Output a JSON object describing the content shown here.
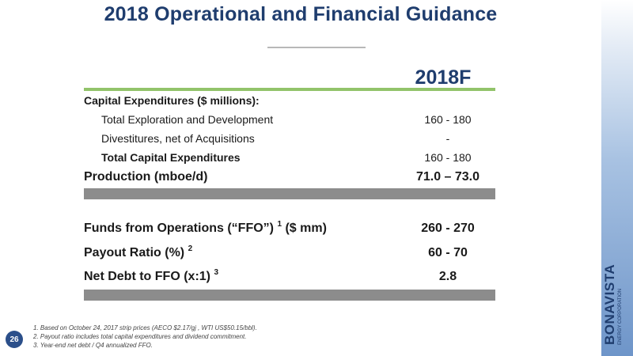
{
  "slide": {
    "title": "2018 Operational and Financial Guidance",
    "column_header": "2018F",
    "page_number": "26"
  },
  "rows": {
    "capex_header": "Capital Expenditures ($ millions):",
    "exploration": {
      "label": "Total Exploration and Development",
      "value": "160 - 180"
    },
    "divestitures": {
      "label": "Divestitures, net of Acquisitions",
      "value": "-"
    },
    "total_capex": {
      "label": "Total Capital Expenditures",
      "value": "160 - 180"
    },
    "production": {
      "label": "Production (mboe/d)",
      "value": "71.0 – 73.0"
    },
    "ffo": {
      "label": "Funds from Operations (“FFO”) ",
      "sup": "1",
      "label2": " ($ mm)",
      "value": "260 - 270"
    },
    "payout": {
      "label": "Payout Ratio (%) ",
      "sup": "2",
      "value": "60 - 70"
    },
    "net_debt": {
      "label": "Net Debt to FFO (x:1) ",
      "sup": "3",
      "value": "2.8"
    }
  },
  "footnotes": [
    "1. Based on October 24, 2017 strip prices (AECO $2.17/gj , WTI US$50.15/bbl).",
    "2. Payout ratio includes total capital expenditures and dividend commitment.",
    "3. Year-end net debt / Q4 annualized FFO."
  ],
  "logo": {
    "name": "BONAVISTA",
    "tagline": "ENERGY CORPORATION"
  }
}
